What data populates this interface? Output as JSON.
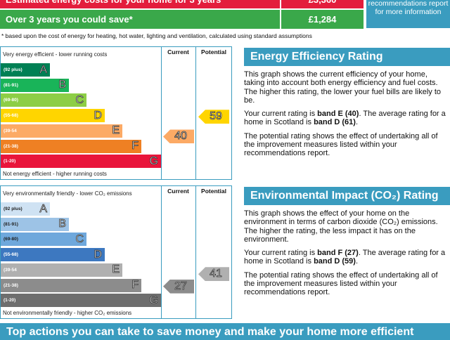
{
  "costs": {
    "rows": [
      {
        "label": "Estimated energy costs for your home for 3 years",
        "value": "£3,360"
      },
      {
        "label": "Over 3 years you could save*",
        "value": "£1,284"
      }
    ],
    "note": "recommendations report for more information"
  },
  "footnote": "* based upon the cost of energy for heating, hot water, lighting and ventilation, calculated using standard assumptions",
  "energy_chart": {
    "top_label": "Very energy efficient - lower running costs",
    "columns": [
      "Current",
      "Potential"
    ],
    "bands": [
      {
        "range": "(92 plus)",
        "letter": "A"
      },
      {
        "range": "(81-91)",
        "letter": "B"
      },
      {
        "range": "(69-80)",
        "letter": "C"
      },
      {
        "range": "(55-68)",
        "letter": "D"
      },
      {
        "range": "(39-54",
        "letter": "E"
      },
      {
        "range": "(21-38)",
        "letter": "F"
      },
      {
        "range": "(1-20)",
        "letter": "G"
      }
    ],
    "bottom_label": "Not energy efficient - higher running costs",
    "current": 40,
    "potential": 59
  },
  "energy_text": {
    "title": "Energy Efficiency Rating",
    "paragraphs": [
      [
        "This graph shows the current efficiency of your home, taking into account both energy efficiency and fuel costs. The higher this rating, the lower your fuel bills are likely to be."
      ],
      [
        "Your current rating is ",
        "band E (40)",
        ". The average rating for a home in Scotland is ",
        "band D (61)",
        "."
      ],
      [
        "The potential rating shows the effect of undertaking all of the improvement measures listed within your recommendations report."
      ]
    ]
  },
  "env_chart": {
    "top_label": "Very environmentally friendly - lower CO₂ emissions",
    "columns": [
      "Current",
      "Potential"
    ],
    "bands": [
      {
        "range": "(92 plus)",
        "letter": "A"
      },
      {
        "range": "(81-91)",
        "letter": "B"
      },
      {
        "range": "(69-80)",
        "letter": "C"
      },
      {
        "range": "(55-68)",
        "letter": "D"
      },
      {
        "range": "(39-54",
        "letter": "E"
      },
      {
        "range": "(21-38)",
        "letter": "F"
      },
      {
        "range": "(1-20)",
        "letter": "G"
      }
    ],
    "bottom_label": "Not environmentally friendly - higher CO₂ emissions",
    "current": 27,
    "potential": 41
  },
  "env_text": {
    "title": "Environmental Impact (CO₂) Rating",
    "paragraphs": [
      [
        "This graph shows the effect of your home on the environment in terms of carbon dioxide (CO₂) emissions. The higher the rating, the less impact it has on the environment."
      ],
      [
        "Your current rating is ",
        "band F (27)",
        ". The average rating for a home in Scotland is ",
        "band D (59)",
        "."
      ],
      [
        "The potential rating shows the effect of undertaking all of the improvement measures listed within your recommendations report."
      ]
    ]
  },
  "banner": "Top actions you can take to save money and make your home more efficient"
}
